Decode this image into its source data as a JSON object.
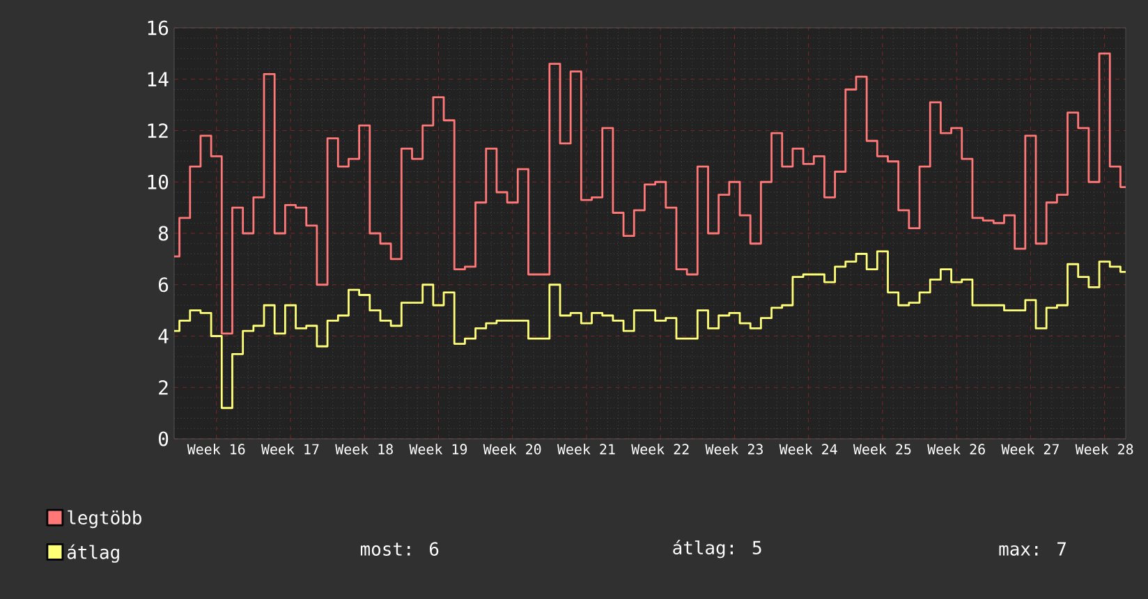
{
  "chart_data": {
    "type": "step",
    "categories": [
      null,
      null,
      null,
      null,
      "Week 16",
      null,
      null,
      null,
      null,
      null,
      null,
      "Week 17",
      null,
      null,
      null,
      null,
      null,
      null,
      "Week 18",
      null,
      null,
      null,
      null,
      null,
      null,
      "Week 19",
      null,
      null,
      null,
      null,
      null,
      null,
      "Week 20",
      null,
      null,
      null,
      null,
      null,
      null,
      "Week 21",
      null,
      null,
      null,
      null,
      null,
      null,
      "Week 22",
      null,
      null,
      null,
      null,
      null,
      null,
      "Week 23",
      null,
      null,
      null,
      null,
      null,
      null,
      "Week 24",
      null,
      null,
      null,
      null,
      null,
      null,
      "Week 25",
      null,
      null,
      null,
      null,
      null,
      null,
      "Week 26",
      null,
      null,
      null,
      null,
      null,
      null,
      "Week 27",
      null,
      null,
      null,
      null,
      null,
      null,
      "Week 28",
      null,
      null
    ],
    "series": [
      {
        "name": "legtöbb",
        "color": "#ff7777",
        "values": [
          7.1,
          8.6,
          10.6,
          11.8,
          11.0,
          4.1,
          9.0,
          8.0,
          9.4,
          14.2,
          8.0,
          9.1,
          9.0,
          8.3,
          6.0,
          11.7,
          10.6,
          10.9,
          12.2,
          8.0,
          7.6,
          7.0,
          11.3,
          10.9,
          12.2,
          13.3,
          12.4,
          6.6,
          6.7,
          9.2,
          11.3,
          9.6,
          9.2,
          10.5,
          6.4,
          6.4,
          14.6,
          11.5,
          14.3,
          9.3,
          9.4,
          12.1,
          8.8,
          7.9,
          8.9,
          9.9,
          10.0,
          9.0,
          6.6,
          6.4,
          10.6,
          8.0,
          9.5,
          10.0,
          8.7,
          7.6,
          10.0,
          11.9,
          10.6,
          11.3,
          10.7,
          11.0,
          9.4,
          10.4,
          13.6,
          14.1,
          11.6,
          11.0,
          10.8,
          8.9,
          8.2,
          10.6,
          13.1,
          11.9,
          12.1,
          10.9,
          8.6,
          8.5,
          8.4,
          8.7,
          7.4,
          11.8,
          7.6,
          9.2,
          9.5,
          12.7,
          12.1,
          10.0,
          15.0,
          10.6,
          9.8
        ]
      },
      {
        "name": "átlag",
        "color": "#ffff77",
        "values": [
          4.2,
          4.6,
          5.0,
          4.9,
          4.0,
          1.2,
          3.3,
          4.2,
          4.4,
          5.2,
          4.1,
          5.2,
          4.3,
          4.4,
          3.6,
          4.6,
          4.8,
          5.8,
          5.6,
          5.0,
          4.6,
          4.4,
          5.3,
          5.3,
          6.0,
          5.2,
          5.7,
          3.7,
          3.9,
          4.3,
          4.5,
          4.6,
          4.6,
          4.6,
          3.9,
          3.9,
          6.0,
          4.8,
          4.9,
          4.5,
          4.9,
          4.8,
          4.6,
          4.2,
          5.0,
          5.0,
          4.6,
          4.7,
          3.9,
          3.9,
          5.0,
          4.3,
          4.8,
          4.9,
          4.5,
          4.3,
          4.7,
          5.1,
          5.2,
          6.3,
          6.4,
          6.4,
          6.1,
          6.7,
          6.9,
          7.2,
          6.6,
          7.3,
          5.7,
          5.2,
          5.3,
          5.7,
          6.2,
          6.6,
          6.1,
          6.2,
          5.2,
          5.2,
          5.2,
          5.0,
          5.0,
          5.4,
          4.3,
          5.1,
          5.2,
          6.8,
          6.3,
          5.9,
          6.9,
          6.7,
          6.5
        ]
      }
    ],
    "ylim": [
      0,
      16
    ],
    "yticks": [
      0,
      2,
      4,
      6,
      8,
      10,
      12,
      14,
      16
    ],
    "grid": true,
    "legend": "bottom left",
    "annotations": [
      "most: 6",
      "átlag: 5",
      "max: 7"
    ]
  }
}
